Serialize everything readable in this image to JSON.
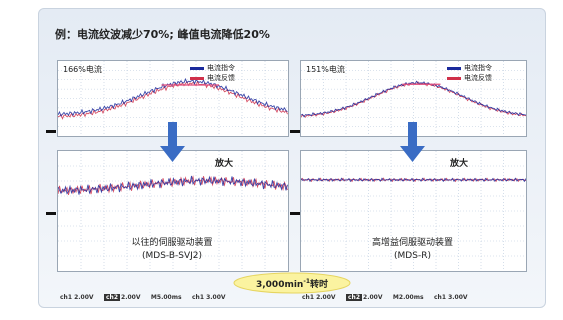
{
  "title": "例：电流纹波减少70%; 峰值电流降低20%",
  "panels": [
    {
      "label": "166%电流",
      "legend": [
        "电流指令",
        "电流反馈"
      ]
    },
    {
      "label": "151%电流",
      "legend": [
        "电流指令",
        "电流反馈"
      ]
    }
  ],
  "zoom": [
    "放大",
    "放大"
  ],
  "captions": [
    [
      "以往的伺服驱动装置",
      "(MDS-B-SVJ2)"
    ],
    [
      "高增益伺服驱动装置",
      "(MDS-R)"
    ]
  ],
  "badge": {
    "text": "3,000min",
    "sup": "-1",
    "suffix": "转时"
  },
  "footer": [
    [
      "ch1 2.00V",
      "ch2",
      "2.00V",
      "M5.00ms",
      "ch1 3.00V"
    ],
    [
      "ch1 2.00V",
      "ch2",
      "2.00V",
      "M2.00ms",
      "ch1 3.00V"
    ]
  ]
}
